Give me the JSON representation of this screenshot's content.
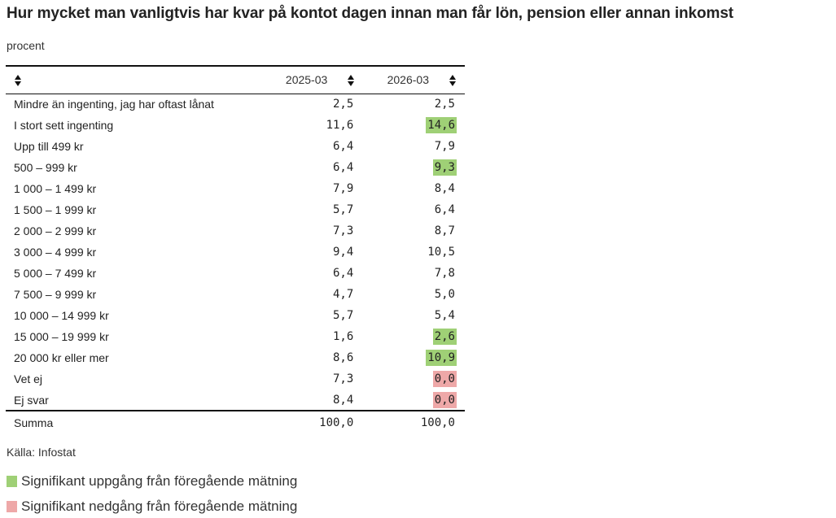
{
  "title": "Hur mycket man vanligtvis har kvar på kontot dagen innan man får lön, pension eller annan inkomst",
  "unit": "procent",
  "colors": {
    "up": "#9fd076",
    "down": "#eea8a8"
  },
  "columns": [
    "2025-03",
    "2026-03"
  ],
  "rows": [
    {
      "label": "Mindre än ingenting, jag har oftast lånat",
      "values": [
        "2,5",
        "2,5"
      ],
      "sig": [
        null,
        null
      ]
    },
    {
      "label": "I stort sett ingenting",
      "values": [
        "11,6",
        "14,6"
      ],
      "sig": [
        null,
        "up"
      ]
    },
    {
      "label": "Upp till 499 kr",
      "values": [
        "6,4",
        "7,9"
      ],
      "sig": [
        null,
        null
      ]
    },
    {
      "label": "500 – 999 kr",
      "values": [
        "6,4",
        "9,3"
      ],
      "sig": [
        null,
        "up"
      ]
    },
    {
      "label": "1 000 – 1 499 kr",
      "values": [
        "7,9",
        "8,4"
      ],
      "sig": [
        null,
        null
      ]
    },
    {
      "label": "1 500 – 1 999 kr",
      "values": [
        "5,7",
        "6,4"
      ],
      "sig": [
        null,
        null
      ]
    },
    {
      "label": "2 000 – 2 999 kr",
      "values": [
        "7,3",
        "8,7"
      ],
      "sig": [
        null,
        null
      ]
    },
    {
      "label": "3 000 – 4 999 kr",
      "values": [
        "9,4",
        "10,5"
      ],
      "sig": [
        null,
        null
      ]
    },
    {
      "label": "5 000 – 7 499 kr",
      "values": [
        "6,4",
        "7,8"
      ],
      "sig": [
        null,
        null
      ]
    },
    {
      "label": "7 500 – 9 999 kr",
      "values": [
        "4,7",
        "5,0"
      ],
      "sig": [
        null,
        null
      ]
    },
    {
      "label": "10 000 – 14 999 kr",
      "values": [
        "5,7",
        "5,4"
      ],
      "sig": [
        null,
        null
      ]
    },
    {
      "label": "15 000 – 19 999 kr",
      "values": [
        "1,6",
        "2,6"
      ],
      "sig": [
        null,
        "up"
      ]
    },
    {
      "label": "20 000 kr eller mer",
      "values": [
        "8,6",
        "10,9"
      ],
      "sig": [
        null,
        "up"
      ]
    },
    {
      "label": "Vet ej",
      "values": [
        "7,3",
        "0,0"
      ],
      "sig": [
        null,
        "down"
      ]
    },
    {
      "label": "Ej svar",
      "values": [
        "8,4",
        "0,0"
      ],
      "sig": [
        null,
        "down"
      ]
    }
  ],
  "total": {
    "label": "Summa",
    "values": [
      "100,0",
      "100,0"
    ]
  },
  "source": "Källa: Infostat",
  "legend": {
    "up": "Signifikant uppgång från föregående mätning",
    "down": "Signifikant nedgång från föregående mätning"
  }
}
